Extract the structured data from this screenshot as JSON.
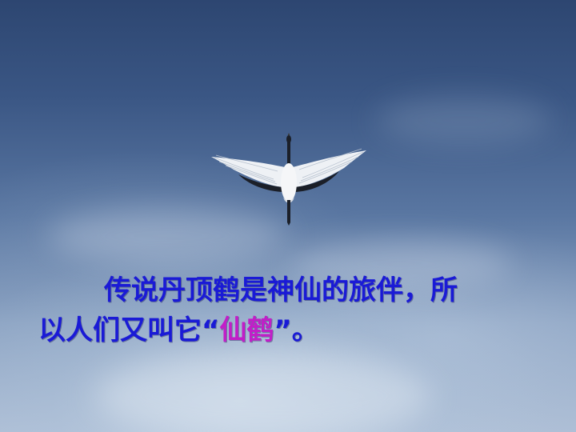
{
  "slide": {
    "background": "sky",
    "image": {
      "subject": "red-crowned-crane-in-flight",
      "colors": {
        "body": "#f2f4f6",
        "wing_tips": "#1b1f28"
      }
    },
    "caption": {
      "line1": "传说丹顶鹤是神仙的旅伴，所",
      "line2_prefix": "以人们又叫它“",
      "highlight": "仙鹤",
      "line2_suffix": "”。"
    },
    "colors": {
      "text": "#1a1ad6",
      "highlight": "#c21ec8"
    }
  }
}
